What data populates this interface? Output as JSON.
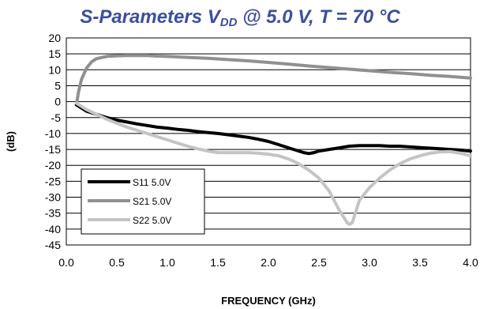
{
  "chart_data": {
    "type": "line",
    "title": {
      "prefix": "S-Parameters V",
      "subscript": "DD",
      "suffix": " @ 5.0 V, T = 70 °C"
    },
    "xlabel": "FREQUENCY (GHz)",
    "ylabel": "(dB)",
    "xlim": [
      0.0,
      4.0
    ],
    "ylim": [
      -45,
      20
    ],
    "xticks": [
      "0.0",
      "0.5",
      "1.0",
      "1.5",
      "2.0",
      "2.5",
      "3.0",
      "3.5",
      "4.0"
    ],
    "yticks": [
      "20",
      "15",
      "10",
      "5",
      "0",
      "-5",
      "-10",
      "-15",
      "-20",
      "-25",
      "-30",
      "-35",
      "-40",
      "-45"
    ],
    "grid": "horizontal",
    "legend_position": "bottom-left",
    "series": [
      {
        "name": "S11 5.0V",
        "color": "#000000",
        "x": [
          0.1,
          0.15,
          0.2,
          0.3,
          0.4,
          0.5,
          0.6,
          0.7,
          0.8,
          0.9,
          1.0,
          1.1,
          1.2,
          1.3,
          1.4,
          1.5,
          1.6,
          1.7,
          1.8,
          1.9,
          2.0,
          2.1,
          2.2,
          2.3,
          2.35,
          2.4,
          2.45,
          2.5,
          2.6,
          2.7,
          2.8,
          2.9,
          3.0,
          3.1,
          3.2,
          3.3,
          3.4,
          3.5,
          3.6,
          3.7,
          3.8,
          3.9,
          4.0
        ],
        "y": [
          -1.0,
          -2.0,
          -3.0,
          -4.0,
          -5.0,
          -5.8,
          -6.4,
          -7.0,
          -7.5,
          -8.0,
          -8.3,
          -8.7,
          -9.0,
          -9.4,
          -9.7,
          -10.0,
          -10.4,
          -10.8,
          -11.2,
          -11.8,
          -12.5,
          -13.5,
          -14.5,
          -15.5,
          -16.0,
          -16.3,
          -16.0,
          -15.5,
          -15.0,
          -14.5,
          -14.0,
          -13.8,
          -13.8,
          -13.8,
          -14.0,
          -14.0,
          -14.2,
          -14.4,
          -14.6,
          -14.8,
          -15.0,
          -15.2,
          -15.5
        ]
      },
      {
        "name": "S21 5.0V",
        "color": "#909090",
        "x": [
          0.1,
          0.12,
          0.15,
          0.2,
          0.25,
          0.3,
          0.4,
          0.5,
          0.6,
          0.7,
          0.8,
          0.9,
          1.0,
          1.2,
          1.4,
          1.6,
          1.8,
          2.0,
          2.2,
          2.4,
          2.6,
          2.8,
          3.0,
          3.2,
          3.4,
          3.6,
          3.8,
          4.0
        ],
        "y": [
          -1.0,
          3.0,
          7.0,
          10.5,
          12.5,
          13.5,
          14.2,
          14.4,
          14.5,
          14.5,
          14.5,
          14.3,
          14.2,
          13.9,
          13.6,
          13.2,
          12.8,
          12.3,
          11.8,
          11.2,
          10.7,
          10.2,
          9.7,
          9.2,
          8.8,
          8.3,
          7.9,
          7.4
        ]
      },
      {
        "name": "S22 5.0V",
        "color": "#c4c4c4",
        "x": [
          0.1,
          0.2,
          0.3,
          0.4,
          0.5,
          0.6,
          0.7,
          0.8,
          0.9,
          1.0,
          1.1,
          1.2,
          1.3,
          1.4,
          1.5,
          1.6,
          1.7,
          1.8,
          1.9,
          2.0,
          2.1,
          2.2,
          2.3,
          2.4,
          2.5,
          2.6,
          2.65,
          2.7,
          2.75,
          2.78,
          2.8,
          2.83,
          2.85,
          2.9,
          3.0,
          3.1,
          3.2,
          3.3,
          3.4,
          3.5,
          3.6,
          3.7,
          3.8,
          3.9,
          4.0
        ],
        "y": [
          -0.5,
          -2.5,
          -4.0,
          -5.5,
          -6.8,
          -8.0,
          -9.0,
          -10.0,
          -11.0,
          -12.0,
          -13.0,
          -14.0,
          -14.8,
          -15.5,
          -16.0,
          -16.0,
          -16.0,
          -16.0,
          -16.2,
          -16.5,
          -17.0,
          -18.0,
          -19.5,
          -21.5,
          -24.0,
          -28.0,
          -31.0,
          -34.0,
          -36.5,
          -38.0,
          -38.5,
          -38.0,
          -36.0,
          -31.0,
          -27.0,
          -24.0,
          -21.5,
          -19.5,
          -18.0,
          -17.0,
          -16.2,
          -15.8,
          -15.7,
          -16.2,
          -17.0
        ]
      }
    ]
  }
}
